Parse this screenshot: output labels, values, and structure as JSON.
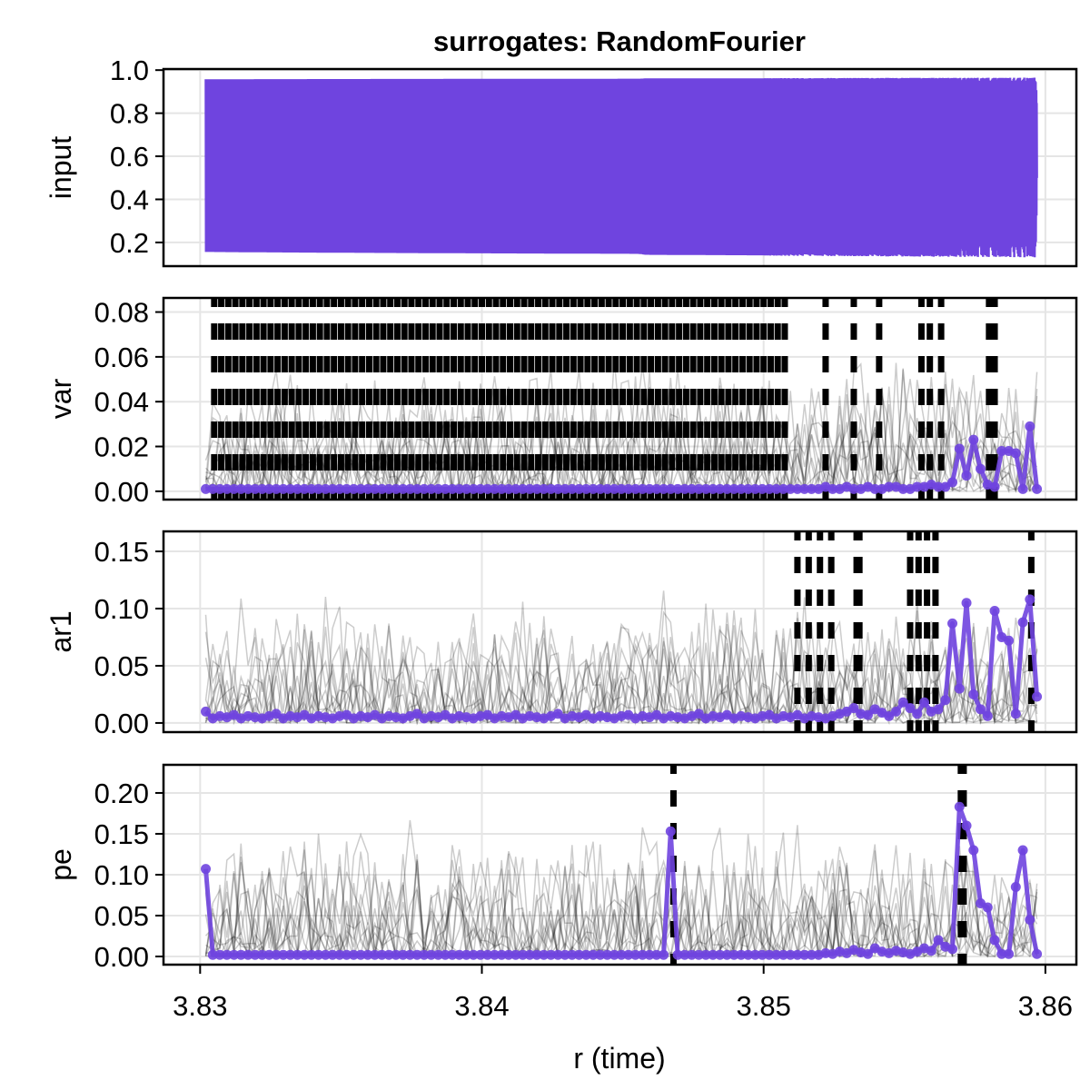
{
  "chart_data": [
    {
      "type": "line",
      "title": "surrogates: RandomFourier",
      "ylabel": "input",
      "xlim": [
        3.8287,
        3.8611
      ],
      "ylim": [
        0.09,
        1.005
      ],
      "yticks": [
        "0.2",
        "0.4",
        "0.6",
        "0.8",
        "1.0"
      ],
      "ytick_values": [
        0.2,
        0.4,
        0.6,
        0.8,
        1.0
      ],
      "grid": true,
      "series": [
        {
          "x_range": [
            3.8302,
            3.8597
          ],
          "envelope": {
            "min": 0.15,
            "max": 0.96
          }
        }
      ]
    },
    {
      "type": "line",
      "ylabel": "var",
      "ylim": [
        -0.0037,
        0.0863
      ],
      "yticks": [
        "0.00",
        "0.02",
        "0.04",
        "0.06",
        "0.08"
      ],
      "ytick_values": [
        0,
        0.02,
        0.04,
        0.06,
        0.08
      ],
      "grid": true,
      "x_start": 3.8302,
      "x_step": 0.00025,
      "values": [
        0.001,
        0.001,
        0.001,
        0.001,
        0.001,
        0.001,
        0.001,
        0.001,
        0.001,
        0.001,
        0.001,
        0.001,
        0.001,
        0.001,
        0.001,
        0.001,
        0.001,
        0.001,
        0.001,
        0.001,
        0.001,
        0.001,
        0.001,
        0.001,
        0.001,
        0.001,
        0.001,
        0.001,
        0.001,
        0.001,
        0.001,
        0.001,
        0.001,
        0.001,
        0.001,
        0.001,
        0.001,
        0.001,
        0.001,
        0.001,
        0.001,
        0.001,
        0.001,
        0.001,
        0.001,
        0.001,
        0.001,
        0.001,
        0.001,
        0.001,
        0.001,
        0.001,
        0.001,
        0.001,
        0.001,
        0.001,
        0.001,
        0.001,
        0.001,
        0.001,
        0.001,
        0.001,
        0.001,
        0.001,
        0.001,
        0.001,
        0.001,
        0.001,
        0.001,
        0.001,
        0.001,
        0.001,
        0.001,
        0.001,
        0.001,
        0.001,
        0.001,
        0.001,
        0.001,
        0.001,
        0.001,
        0.001,
        0.001,
        0.001,
        0.001,
        0.001,
        0.001,
        0.001,
        0.002,
        0.001,
        0.001,
        0.002,
        0.001,
        0.001,
        0.002,
        0.001,
        0.001,
        0.002,
        0.002,
        0.001,
        0.001,
        0.002,
        0.002,
        0.003,
        0.002,
        0.002,
        0.004,
        0.019,
        0.007,
        0.023,
        0.01,
        0.003,
        0.002,
        0.018,
        0.018,
        0.017,
        0.001,
        0.029,
        0.001
      ],
      "significant": {
        "ranges": [
          [
            3.8305,
            3.8509
          ]
        ],
        "points": [
          3.8522,
          3.8532,
          3.8541,
          3.8556,
          3.8559,
          3.8563,
          3.858,
          3.8582
        ]
      }
    },
    {
      "type": "line",
      "ylabel": "ar1",
      "ylim": [
        -0.008,
        0.1675
      ],
      "yticks": [
        "0.00",
        "0.05",
        "0.10",
        "0.15"
      ],
      "ytick_values": [
        0,
        0.05,
        0.1,
        0.15
      ],
      "grid": true,
      "x_start": 3.8302,
      "x_step": 0.00025,
      "values": [
        0.01,
        0.004,
        0.006,
        0.005,
        0.007,
        0.004,
        0.006,
        0.005,
        0.004,
        0.006,
        0.008,
        0.004,
        0.006,
        0.005,
        0.007,
        0.004,
        0.006,
        0.005,
        0.004,
        0.006,
        0.007,
        0.004,
        0.006,
        0.005,
        0.007,
        0.004,
        0.006,
        0.005,
        0.004,
        0.006,
        0.008,
        0.004,
        0.006,
        0.005,
        0.007,
        0.004,
        0.006,
        0.005,
        0.004,
        0.006,
        0.007,
        0.004,
        0.006,
        0.005,
        0.007,
        0.004,
        0.006,
        0.005,
        0.004,
        0.006,
        0.008,
        0.004,
        0.006,
        0.005,
        0.007,
        0.004,
        0.006,
        0.005,
        0.004,
        0.006,
        0.007,
        0.004,
        0.006,
        0.005,
        0.007,
        0.004,
        0.006,
        0.005,
        0.004,
        0.006,
        0.008,
        0.004,
        0.006,
        0.005,
        0.007,
        0.004,
        0.006,
        0.005,
        0.004,
        0.006,
        0.007,
        0.004,
        0.006,
        0.005,
        0.007,
        0.004,
        0.006,
        0.005,
        0.004,
        0.006,
        0.008,
        0.01,
        0.013,
        0.008,
        0.007,
        0.012,
        0.009,
        0.006,
        0.01,
        0.018,
        0.013,
        0.008,
        0.018,
        0.01,
        0.012,
        0.02,
        0.087,
        0.03,
        0.105,
        0.025,
        0.012,
        0.006,
        0.098,
        0.075,
        0.072,
        0.008,
        0.088,
        0.108,
        0.023
      ],
      "significant": {
        "ranges": [],
        "points": [
          3.8512,
          3.8516,
          3.852,
          3.8524,
          3.8533,
          3.8534,
          3.8552,
          3.8555,
          3.8558,
          3.8561,
          3.8595
        ]
      }
    },
    {
      "type": "line",
      "ylabel": "pe",
      "xlabel": "r (time)",
      "ylim": [
        -0.01,
        0.2344
      ],
      "yticks": [
        "0.00",
        "0.05",
        "0.10",
        "0.15",
        "0.20"
      ],
      "ytick_values": [
        0,
        0.05,
        0.1,
        0.15,
        0.2
      ],
      "xticks": [
        "3.83",
        "3.84",
        "3.85",
        "3.86"
      ],
      "xtick_values": [
        3.83,
        3.84,
        3.85,
        3.86
      ],
      "grid": true,
      "x_start": 3.8302,
      "x_step": 0.00025,
      "values": [
        0.107,
        0.002,
        0.002,
        0.002,
        0.002,
        0.002,
        0.002,
        0.002,
        0.002,
        0.002,
        0.002,
        0.002,
        0.002,
        0.002,
        0.002,
        0.002,
        0.002,
        0.002,
        0.002,
        0.002,
        0.002,
        0.002,
        0.002,
        0.002,
        0.002,
        0.002,
        0.002,
        0.002,
        0.002,
        0.002,
        0.002,
        0.002,
        0.002,
        0.002,
        0.002,
        0.002,
        0.002,
        0.002,
        0.002,
        0.002,
        0.002,
        0.002,
        0.002,
        0.002,
        0.002,
        0.002,
        0.002,
        0.002,
        0.002,
        0.002,
        0.002,
        0.002,
        0.002,
        0.002,
        0.002,
        0.002,
        0.002,
        0.002,
        0.002,
        0.002,
        0.002,
        0.002,
        0.002,
        0.002,
        0.002,
        0.002,
        0.153,
        0.002,
        0.002,
        0.002,
        0.002,
        0.002,
        0.002,
        0.002,
        0.002,
        0.002,
        0.002,
        0.002,
        0.002,
        0.002,
        0.002,
        0.002,
        0.002,
        0.002,
        0.002,
        0.002,
        0.002,
        0.002,
        0.004,
        0.003,
        0.006,
        0.004,
        0.008,
        0.005,
        0.003,
        0.01,
        0.006,
        0.004,
        0.007,
        0.005,
        0.003,
        0.006,
        0.01,
        0.007,
        0.02,
        0.012,
        0.009,
        0.183,
        0.16,
        0.13,
        0.065,
        0.06,
        0.02,
        0.003,
        0.003,
        0.085,
        0.13,
        0.045,
        0.003
      ],
      "significant": {
        "ranges": [],
        "points": [
          3.8468,
          3.857,
          3.8571
        ]
      }
    }
  ],
  "colors": {
    "series": "#6f44df",
    "surrogates": "#000000",
    "significance": "#000000",
    "grid": "#e5e5e5"
  }
}
